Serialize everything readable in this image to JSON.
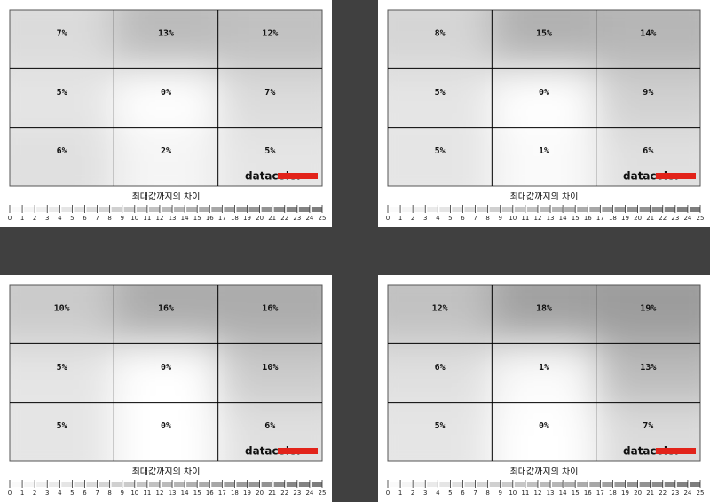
{
  "chart_data": [
    {
      "type": "heatmap",
      "caption": "최대값까지의 차이",
      "logo": "datacolor",
      "values": [
        [
          7,
          13,
          12
        ],
        [
          5,
          0,
          7
        ],
        [
          6,
          2,
          5
        ]
      ],
      "value_labels": [
        [
          "7%",
          "13%",
          "12%"
        ],
        [
          "5%",
          "0%",
          "7%"
        ],
        [
          "6%",
          "2%",
          "5%"
        ]
      ],
      "clim": [
        0,
        25
      ],
      "cticks": [
        0,
        1,
        2,
        3,
        4,
        5,
        6,
        7,
        8,
        9,
        10,
        11,
        12,
        13,
        14,
        15,
        16,
        17,
        18,
        19,
        20,
        21,
        22,
        23,
        24,
        25
      ]
    },
    {
      "type": "heatmap",
      "caption": "최대값까지의 차이",
      "logo": "datacolor",
      "values": [
        [
          8,
          15,
          14
        ],
        [
          5,
          0,
          9
        ],
        [
          5,
          1,
          6
        ]
      ],
      "value_labels": [
        [
          "8%",
          "15%",
          "14%"
        ],
        [
          "5%",
          "0%",
          "9%"
        ],
        [
          "5%",
          "1%",
          "6%"
        ]
      ],
      "clim": [
        0,
        25
      ],
      "cticks": [
        0,
        1,
        2,
        3,
        4,
        5,
        6,
        7,
        8,
        9,
        10,
        11,
        12,
        13,
        14,
        15,
        16,
        17,
        18,
        19,
        20,
        21,
        22,
        23,
        24,
        25
      ]
    },
    {
      "type": "heatmap",
      "caption": "최대값까지의 차이",
      "logo": "datacolor",
      "values": [
        [
          10,
          16,
          16
        ],
        [
          5,
          0,
          10
        ],
        [
          5,
          0,
          6
        ]
      ],
      "value_labels": [
        [
          "10%",
          "16%",
          "16%"
        ],
        [
          "5%",
          "0%",
          "10%"
        ],
        [
          "5%",
          "0%",
          "6%"
        ]
      ],
      "clim": [
        0,
        25
      ],
      "cticks": [
        0,
        1,
        2,
        3,
        4,
        5,
        6,
        7,
        8,
        9,
        10,
        11,
        12,
        13,
        14,
        15,
        16,
        17,
        18,
        19,
        20,
        21,
        22,
        23,
        24,
        25
      ]
    },
    {
      "type": "heatmap",
      "caption": "최대값까지의 차이",
      "logo": "datacolor",
      "values": [
        [
          12,
          18,
          19
        ],
        [
          6,
          1,
          13
        ],
        [
          5,
          0,
          7
        ]
      ],
      "value_labels": [
        [
          "12%",
          "18%",
          "19%"
        ],
        [
          "6%",
          "1%",
          "13%"
        ],
        [
          "5%",
          "0%",
          "7%"
        ]
      ],
      "clim": [
        0,
        25
      ],
      "cticks": [
        0,
        1,
        2,
        3,
        4,
        5,
        6,
        7,
        8,
        9,
        10,
        11,
        12,
        13,
        14,
        15,
        16,
        17,
        18,
        19,
        20,
        21,
        22,
        23,
        24,
        25
      ]
    }
  ]
}
